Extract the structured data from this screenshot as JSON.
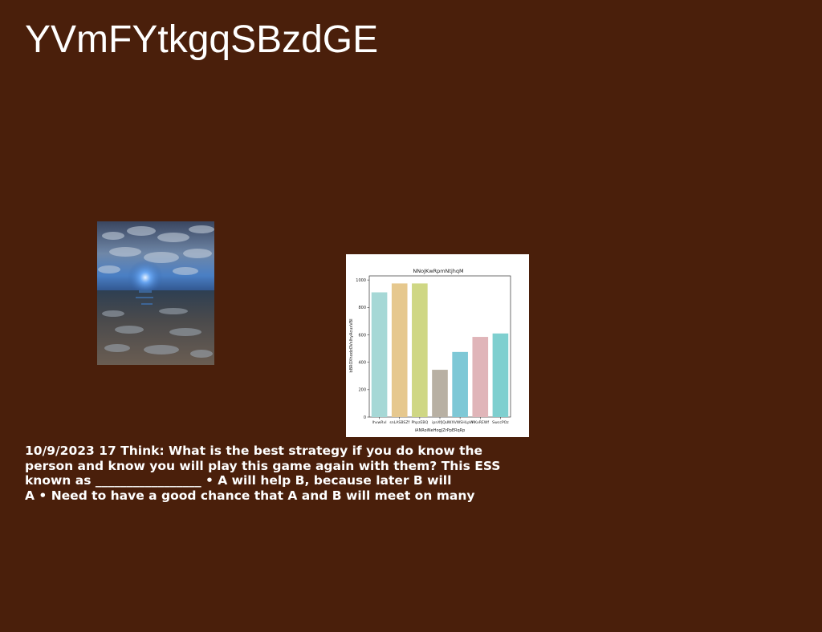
{
  "slide": {
    "title": "YVmFYtkgqSBzdGE",
    "body_lines": [
      "10/9/2023 17 Think: What is the best strategy if you do know the",
      "person and know you will play this game again with them? This ESS",
      "known as _________________ • A will help B, because later B will",
      "A • Need to have a good chance that A and B will meet on many"
    ]
  },
  "photo": {
    "subject": "sunset over wet tidal beach"
  },
  "chart_data": {
    "type": "bar",
    "title": "NNoJKwRpmNtjhqM",
    "xlabel": "iANRoiNeHogJZrPpERqRp",
    "ylabel": "bBROXhodzOVsIhyAcuxVBI",
    "categories": [
      "lhvwRvl",
      "snLASBSZf",
      "PhpzEBQ",
      "ipnXfjQu",
      "IWXVWSHLpW",
      "HKxREWf",
      "SwccPOz"
    ],
    "values": [
      910,
      975,
      975,
      345,
      475,
      585,
      610
    ],
    "colors": [
      "#a6d8d6",
      "#e6c88e",
      "#cfd784",
      "#b8b0a3",
      "#7ec8d6",
      "#e0b5b9",
      "#7ecfcf"
    ],
    "ylim": [
      0,
      1030
    ],
    "yticks": [
      0,
      200,
      400,
      600,
      800,
      1000
    ],
    "grid": false
  }
}
